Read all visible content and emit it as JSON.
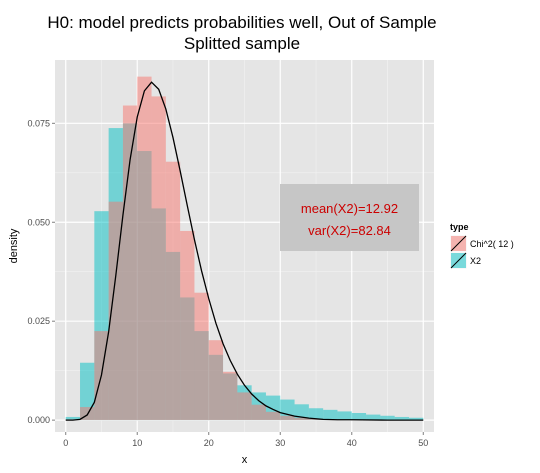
{
  "chart_data": {
    "type": "histogram",
    "title": "H0: model predicts probabilities well, Out of Sample",
    "subtitle": "Splitted sample",
    "xlabel": "x",
    "ylabel": "density",
    "xlim": [
      -1.5,
      51.5
    ],
    "ylim": [
      -0.003,
      0.091
    ],
    "x_ticks": [
      0,
      10,
      20,
      30,
      40,
      50
    ],
    "y_ticks": [
      0.0,
      0.025,
      0.05,
      0.075
    ],
    "y_tick_labels": [
      "0.000",
      "0.025",
      "0.050",
      "0.075"
    ],
    "grid": true,
    "legend_position": "right",
    "legend_title": "type",
    "bin_edges": [
      0,
      2,
      4,
      6,
      8,
      10,
      12,
      14,
      16,
      18,
      20,
      22,
      24,
      26,
      28,
      30,
      32,
      34,
      36,
      38,
      40,
      42,
      44,
      46,
      48,
      50
    ],
    "series": [
      {
        "name": "Chi^2( 12 )",
        "color": "#F8766D",
        "densities": [
          0.0002,
          0.0033,
          0.0225,
          0.0552,
          0.0795,
          0.0868,
          0.0818,
          0.0653,
          0.0478,
          0.0322,
          0.0202,
          0.0122,
          0.007,
          0.0039,
          0.0021,
          0.0011,
          0.0006,
          0.0003,
          0.0002,
          0.0001,
          0.0001,
          0.0,
          0.0,
          0.0,
          0.0
        ]
      },
      {
        "name": "X2",
        "color": "#00BFC4",
        "densities": [
          0.0008,
          0.0145,
          0.0528,
          0.0738,
          0.075,
          0.068,
          0.0535,
          0.0425,
          0.031,
          0.0225,
          0.0165,
          0.0118,
          0.0088,
          0.007,
          0.0062,
          0.0052,
          0.004,
          0.003,
          0.0026,
          0.0022,
          0.0018,
          0.0014,
          0.0011,
          0.0008,
          0.0006
        ]
      }
    ],
    "density_curve": {
      "x": [
        0,
        1,
        2,
        3,
        4,
        5,
        6,
        7,
        8,
        9,
        10,
        11,
        12,
        13,
        14,
        15,
        16,
        17,
        18,
        19,
        20,
        21,
        22,
        23,
        24,
        25,
        26,
        27,
        28,
        29,
        30,
        32,
        34,
        36,
        38,
        40,
        45,
        50
      ],
      "y": [
        0.0,
        0.0,
        0.0002,
        0.0013,
        0.0045,
        0.0114,
        0.0223,
        0.0365,
        0.0518,
        0.0658,
        0.0766,
        0.0832,
        0.0854,
        0.0836,
        0.0786,
        0.0714,
        0.063,
        0.0542,
        0.0456,
        0.0377,
        0.0307,
        0.0245,
        0.0193,
        0.0151,
        0.0116,
        0.0088,
        0.0066,
        0.0049,
        0.0036,
        0.0027,
        0.0019,
        0.001,
        0.0005,
        0.0002,
        0.0001,
        0.0001,
        0.0,
        0.0
      ]
    },
    "annotation": {
      "lines": [
        "mean(X2)=12.92",
        "var(X2)=82.84"
      ],
      "color": "#CC0000",
      "box_color": "#C6C6C6"
    }
  }
}
